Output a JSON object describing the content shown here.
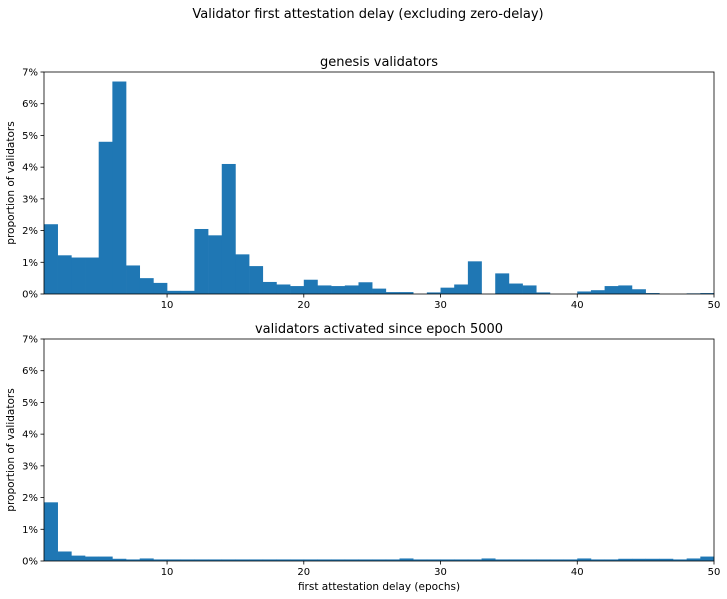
{
  "figure": {
    "suptitle": "Validator first attestation delay (excluding zero-delay)",
    "bar_color": "#1f77b4"
  },
  "chart_data": [
    {
      "type": "bar",
      "title": "genesis validators",
      "xlabel": "",
      "ylabel": "proportion of validators",
      "xlim": [
        1,
        50
      ],
      "ylim": [
        0,
        7
      ],
      "xticks": [
        10,
        20,
        30,
        40,
        50
      ],
      "yticks": [
        0,
        1,
        2,
        3,
        4,
        5,
        6,
        7
      ],
      "y_unit": "%",
      "bin_start": 1,
      "bin_width": 1,
      "grid": false,
      "values": [
        2.2,
        1.22,
        1.15,
        1.15,
        4.8,
        6.7,
        0.9,
        0.5,
        0.35,
        0.1,
        0.1,
        2.05,
        1.85,
        4.1,
        1.25,
        0.88,
        0.38,
        0.3,
        0.25,
        0.45,
        0.27,
        0.25,
        0.27,
        0.37,
        0.17,
        0.06,
        0.06,
        0.0,
        0.05,
        0.2,
        0.3,
        1.03,
        0.0,
        0.65,
        0.33,
        0.27,
        0.05,
        0.0,
        0.0,
        0.08,
        0.12,
        0.25,
        0.27,
        0.15,
        0.03,
        0.0,
        0.0,
        0.02,
        0.03
      ]
    },
    {
      "type": "bar",
      "title": "validators activated since epoch 5000",
      "xlabel": "first attestation delay (epochs)",
      "ylabel": "proportion of validators",
      "xlim": [
        1,
        50
      ],
      "ylim": [
        0,
        7
      ],
      "xticks": [
        10,
        20,
        30,
        40,
        50
      ],
      "yticks": [
        0,
        1,
        2,
        3,
        4,
        5,
        6,
        7
      ],
      "y_unit": "%",
      "bin_start": 1,
      "bin_width": 1,
      "grid": false,
      "values": [
        1.85,
        0.3,
        0.17,
        0.14,
        0.14,
        0.07,
        0.05,
        0.08,
        0.05,
        0.05,
        0.05,
        0.05,
        0.05,
        0.05,
        0.05,
        0.05,
        0.05,
        0.05,
        0.05,
        0.05,
        0.05,
        0.05,
        0.05,
        0.05,
        0.05,
        0.05,
        0.08,
        0.05,
        0.05,
        0.05,
        0.05,
        0.05,
        0.08,
        0.05,
        0.05,
        0.05,
        0.05,
        0.05,
        0.05,
        0.08,
        0.05,
        0.05,
        0.07,
        0.07,
        0.07,
        0.07,
        0.05,
        0.08,
        0.14
      ]
    }
  ]
}
